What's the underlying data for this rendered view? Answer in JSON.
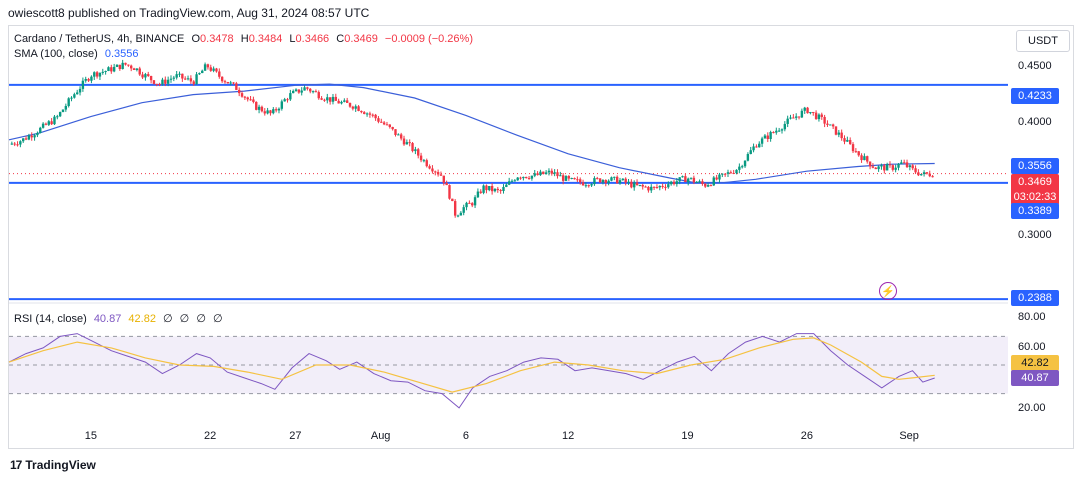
{
  "publisher": "owiescott8 published on TradingView.com, Aug 31, 2024 08:57 UTC",
  "header": {
    "symbol": "Cardano / TetherUS, 4h, BINANCE",
    "o_label": "O",
    "o_value": "0.3478",
    "h_label": "H",
    "h_value": "0.3484",
    "l_label": "L",
    "l_value": "0.3466",
    "c_label": "C",
    "c_value": "0.3469",
    "change": "−0.0009 (−0.26%)",
    "sma_label": "SMA (100, close)",
    "sma_value": "0.3556",
    "rsi_label": "RSI (14, close)",
    "rsi_value": "40.87",
    "rsi_ma_value": "42.82",
    "rsi_zeros": [
      "∅",
      "∅",
      "∅",
      "∅"
    ]
  },
  "currency": "USDT",
  "brand": "TradingView",
  "colors": {
    "blue": "#2962ff",
    "sma": "#3b5fd9",
    "up": "#089981",
    "down": "#f23645",
    "rsi": "#7e57c2",
    "rsi_ma": "#f5c242"
  },
  "price_tags": {
    "resistance": "0.4233",
    "sma": "0.3556",
    "last": "0.3469",
    "countdown": "03:02:33",
    "support": "0.3389",
    "bottom": "0.2388"
  },
  "rsi_tags": {
    "ma": "42.82",
    "rsi": "40.87"
  },
  "chart_data": {
    "type": "candlestick",
    "title": "Cardano / TetherUS, 4h, BINANCE",
    "y_ticks": [
      "0.4500",
      "0.4000",
      "0.3000"
    ],
    "ylim": [
      0.238,
      0.462
    ],
    "x_ticks": [
      {
        "label": "15",
        "day": 15
      },
      {
        "label": "22",
        "day": 22
      },
      {
        "label": "27",
        "day": 27
      },
      {
        "label": "Aug",
        "day": 32
      },
      {
        "label": "6",
        "day": 37
      },
      {
        "label": "12",
        "day": 43
      },
      {
        "label": "19",
        "day": 50
      },
      {
        "label": "26",
        "day": 57
      },
      {
        "label": "Sep",
        "day": 63
      }
    ],
    "xlim_days": [
      10.2,
      68.8
    ],
    "horizontal_levels": [
      0.4233,
      0.3389,
      0.2388
    ],
    "current_price": 0.3469,
    "sma_100_last": 0.3556,
    "price_path": [
      [
        10.2,
        0.372
      ],
      [
        11,
        0.376
      ],
      [
        12,
        0.385
      ],
      [
        13,
        0.395
      ],
      [
        14,
        0.415
      ],
      [
        15,
        0.432
      ],
      [
        16,
        0.436
      ],
      [
        17,
        0.441
      ],
      [
        17.6,
        0.438
      ],
      [
        18,
        0.433
      ],
      [
        19,
        0.424
      ],
      [
        20,
        0.431
      ],
      [
        21,
        0.426
      ],
      [
        21.8,
        0.44
      ],
      [
        22.6,
        0.43
      ],
      [
        23.6,
        0.42
      ],
      [
        24.6,
        0.405
      ],
      [
        25.6,
        0.398
      ],
      [
        26.6,
        0.414
      ],
      [
        27.6,
        0.421
      ],
      [
        28.6,
        0.413
      ],
      [
        29.4,
        0.409
      ],
      [
        30.5,
        0.405
      ],
      [
        31.6,
        0.396
      ],
      [
        32.6,
        0.385
      ],
      [
        33.6,
        0.372
      ],
      [
        34.6,
        0.357
      ],
      [
        35.6,
        0.345
      ],
      [
        36,
        0.33
      ],
      [
        36.4,
        0.311
      ],
      [
        36.8,
        0.317
      ],
      [
        37.4,
        0.322
      ],
      [
        38,
        0.335
      ],
      [
        39,
        0.331
      ],
      [
        40,
        0.345
      ],
      [
        41,
        0.345
      ],
      [
        42,
        0.348
      ],
      [
        43,
        0.341
      ],
      [
        44,
        0.339
      ],
      [
        45,
        0.342
      ],
      [
        46,
        0.341
      ],
      [
        47,
        0.336
      ],
      [
        48,
        0.334
      ],
      [
        49,
        0.339
      ],
      [
        50,
        0.343
      ],
      [
        51,
        0.337
      ],
      [
        52,
        0.344
      ],
      [
        53,
        0.352
      ],
      [
        54,
        0.372
      ],
      [
        55,
        0.382
      ],
      [
        56,
        0.393
      ],
      [
        57,
        0.402
      ],
      [
        58,
        0.392
      ],
      [
        59,
        0.379
      ],
      [
        60,
        0.364
      ],
      [
        61,
        0.352
      ],
      [
        62,
        0.352
      ],
      [
        62.6,
        0.356
      ],
      [
        63.2,
        0.35
      ],
      [
        63.8,
        0.346
      ],
      [
        64.5,
        0.347
      ]
    ],
    "sma_path": [
      [
        10.2,
        0.376
      ],
      [
        12,
        0.382
      ],
      [
        15,
        0.396
      ],
      [
        18,
        0.408
      ],
      [
        21,
        0.415
      ],
      [
        24,
        0.418
      ],
      [
        27,
        0.423
      ],
      [
        29,
        0.424
      ],
      [
        31,
        0.421
      ],
      [
        34,
        0.412
      ],
      [
        37,
        0.397
      ],
      [
        40,
        0.38
      ],
      [
        43,
        0.364
      ],
      [
        46,
        0.352
      ],
      [
        49,
        0.343
      ],
      [
        50.5,
        0.339
      ],
      [
        52,
        0.339
      ],
      [
        54,
        0.342
      ],
      [
        57,
        0.349
      ],
      [
        60,
        0.353
      ],
      [
        62,
        0.355
      ],
      [
        64.5,
        0.3556
      ]
    ],
    "rsi_levels": {
      "upper": 70,
      "middle": 50,
      "lower": 30
    },
    "rsi_ticks": [
      "80.00",
      "60.00",
      "20.00"
    ],
    "rsi_ylim": [
      15,
      85
    ],
    "rsi_path": [
      [
        10.2,
        52
      ],
      [
        11.2,
        58
      ],
      [
        12.2,
        62
      ],
      [
        13.2,
        70
      ],
      [
        14.2,
        72
      ],
      [
        15.2,
        66
      ],
      [
        16.2,
        60
      ],
      [
        17.2,
        56
      ],
      [
        18.2,
        52
      ],
      [
        19.2,
        44
      ],
      [
        20.2,
        50
      ],
      [
        21.2,
        58
      ],
      [
        22,
        55
      ],
      [
        23,
        45
      ],
      [
        24,
        41
      ],
      [
        25,
        37
      ],
      [
        25.8,
        33
      ],
      [
        26.8,
        48
      ],
      [
        27.8,
        58
      ],
      [
        28.8,
        53
      ],
      [
        29.6,
        47
      ],
      [
        30.6,
        52
      ],
      [
        31.6,
        44
      ],
      [
        32.6,
        39
      ],
      [
        33.6,
        38
      ],
      [
        34.6,
        32
      ],
      [
        35.6,
        30
      ],
      [
        36.2,
        24
      ],
      [
        36.6,
        20
      ],
      [
        37.4,
        34
      ],
      [
        38.4,
        42
      ],
      [
        39.4,
        46
      ],
      [
        40.4,
        52
      ],
      [
        41.4,
        55
      ],
      [
        42.4,
        54
      ],
      [
        43.4,
        46
      ],
      [
        44.4,
        48
      ],
      [
        45.4,
        46
      ],
      [
        46.4,
        44
      ],
      [
        47.4,
        40
      ],
      [
        48.4,
        46
      ],
      [
        49.4,
        52
      ],
      [
        50.4,
        56
      ],
      [
        51.4,
        46
      ],
      [
        52.4,
        58
      ],
      [
        53.4,
        66
      ],
      [
        54.4,
        70
      ],
      [
        55.4,
        66
      ],
      [
        56.4,
        72
      ],
      [
        57.4,
        72
      ],
      [
        58.4,
        60
      ],
      [
        59.4,
        50
      ],
      [
        60.4,
        42
      ],
      [
        61.4,
        34
      ],
      [
        62.4,
        42
      ],
      [
        63.2,
        46
      ],
      [
        63.8,
        38
      ],
      [
        64.5,
        40.87
      ]
    ],
    "rsi_ma_path": [
      [
        10.2,
        52
      ],
      [
        12.2,
        60
      ],
      [
        14.2,
        66
      ],
      [
        16.2,
        62
      ],
      [
        18.2,
        55
      ],
      [
        20.2,
        50
      ],
      [
        22.2,
        49
      ],
      [
        24.2,
        45
      ],
      [
        26.2,
        40
      ],
      [
        28.2,
        50
      ],
      [
        30.2,
        50
      ],
      [
        32.2,
        45
      ],
      [
        34.2,
        38
      ],
      [
        36.2,
        31
      ],
      [
        38.2,
        37
      ],
      [
        40.2,
        46
      ],
      [
        42.2,
        52
      ],
      [
        44.2,
        50
      ],
      [
        46.2,
        46
      ],
      [
        48.2,
        44
      ],
      [
        50.2,
        50
      ],
      [
        52.2,
        54
      ],
      [
        54.2,
        62
      ],
      [
        56.2,
        68
      ],
      [
        57.4,
        69
      ],
      [
        58.4,
        64
      ],
      [
        60.2,
        52
      ],
      [
        61.4,
        42
      ],
      [
        62.4,
        40
      ],
      [
        63.2,
        41
      ],
      [
        64.5,
        42.82
      ]
    ]
  }
}
